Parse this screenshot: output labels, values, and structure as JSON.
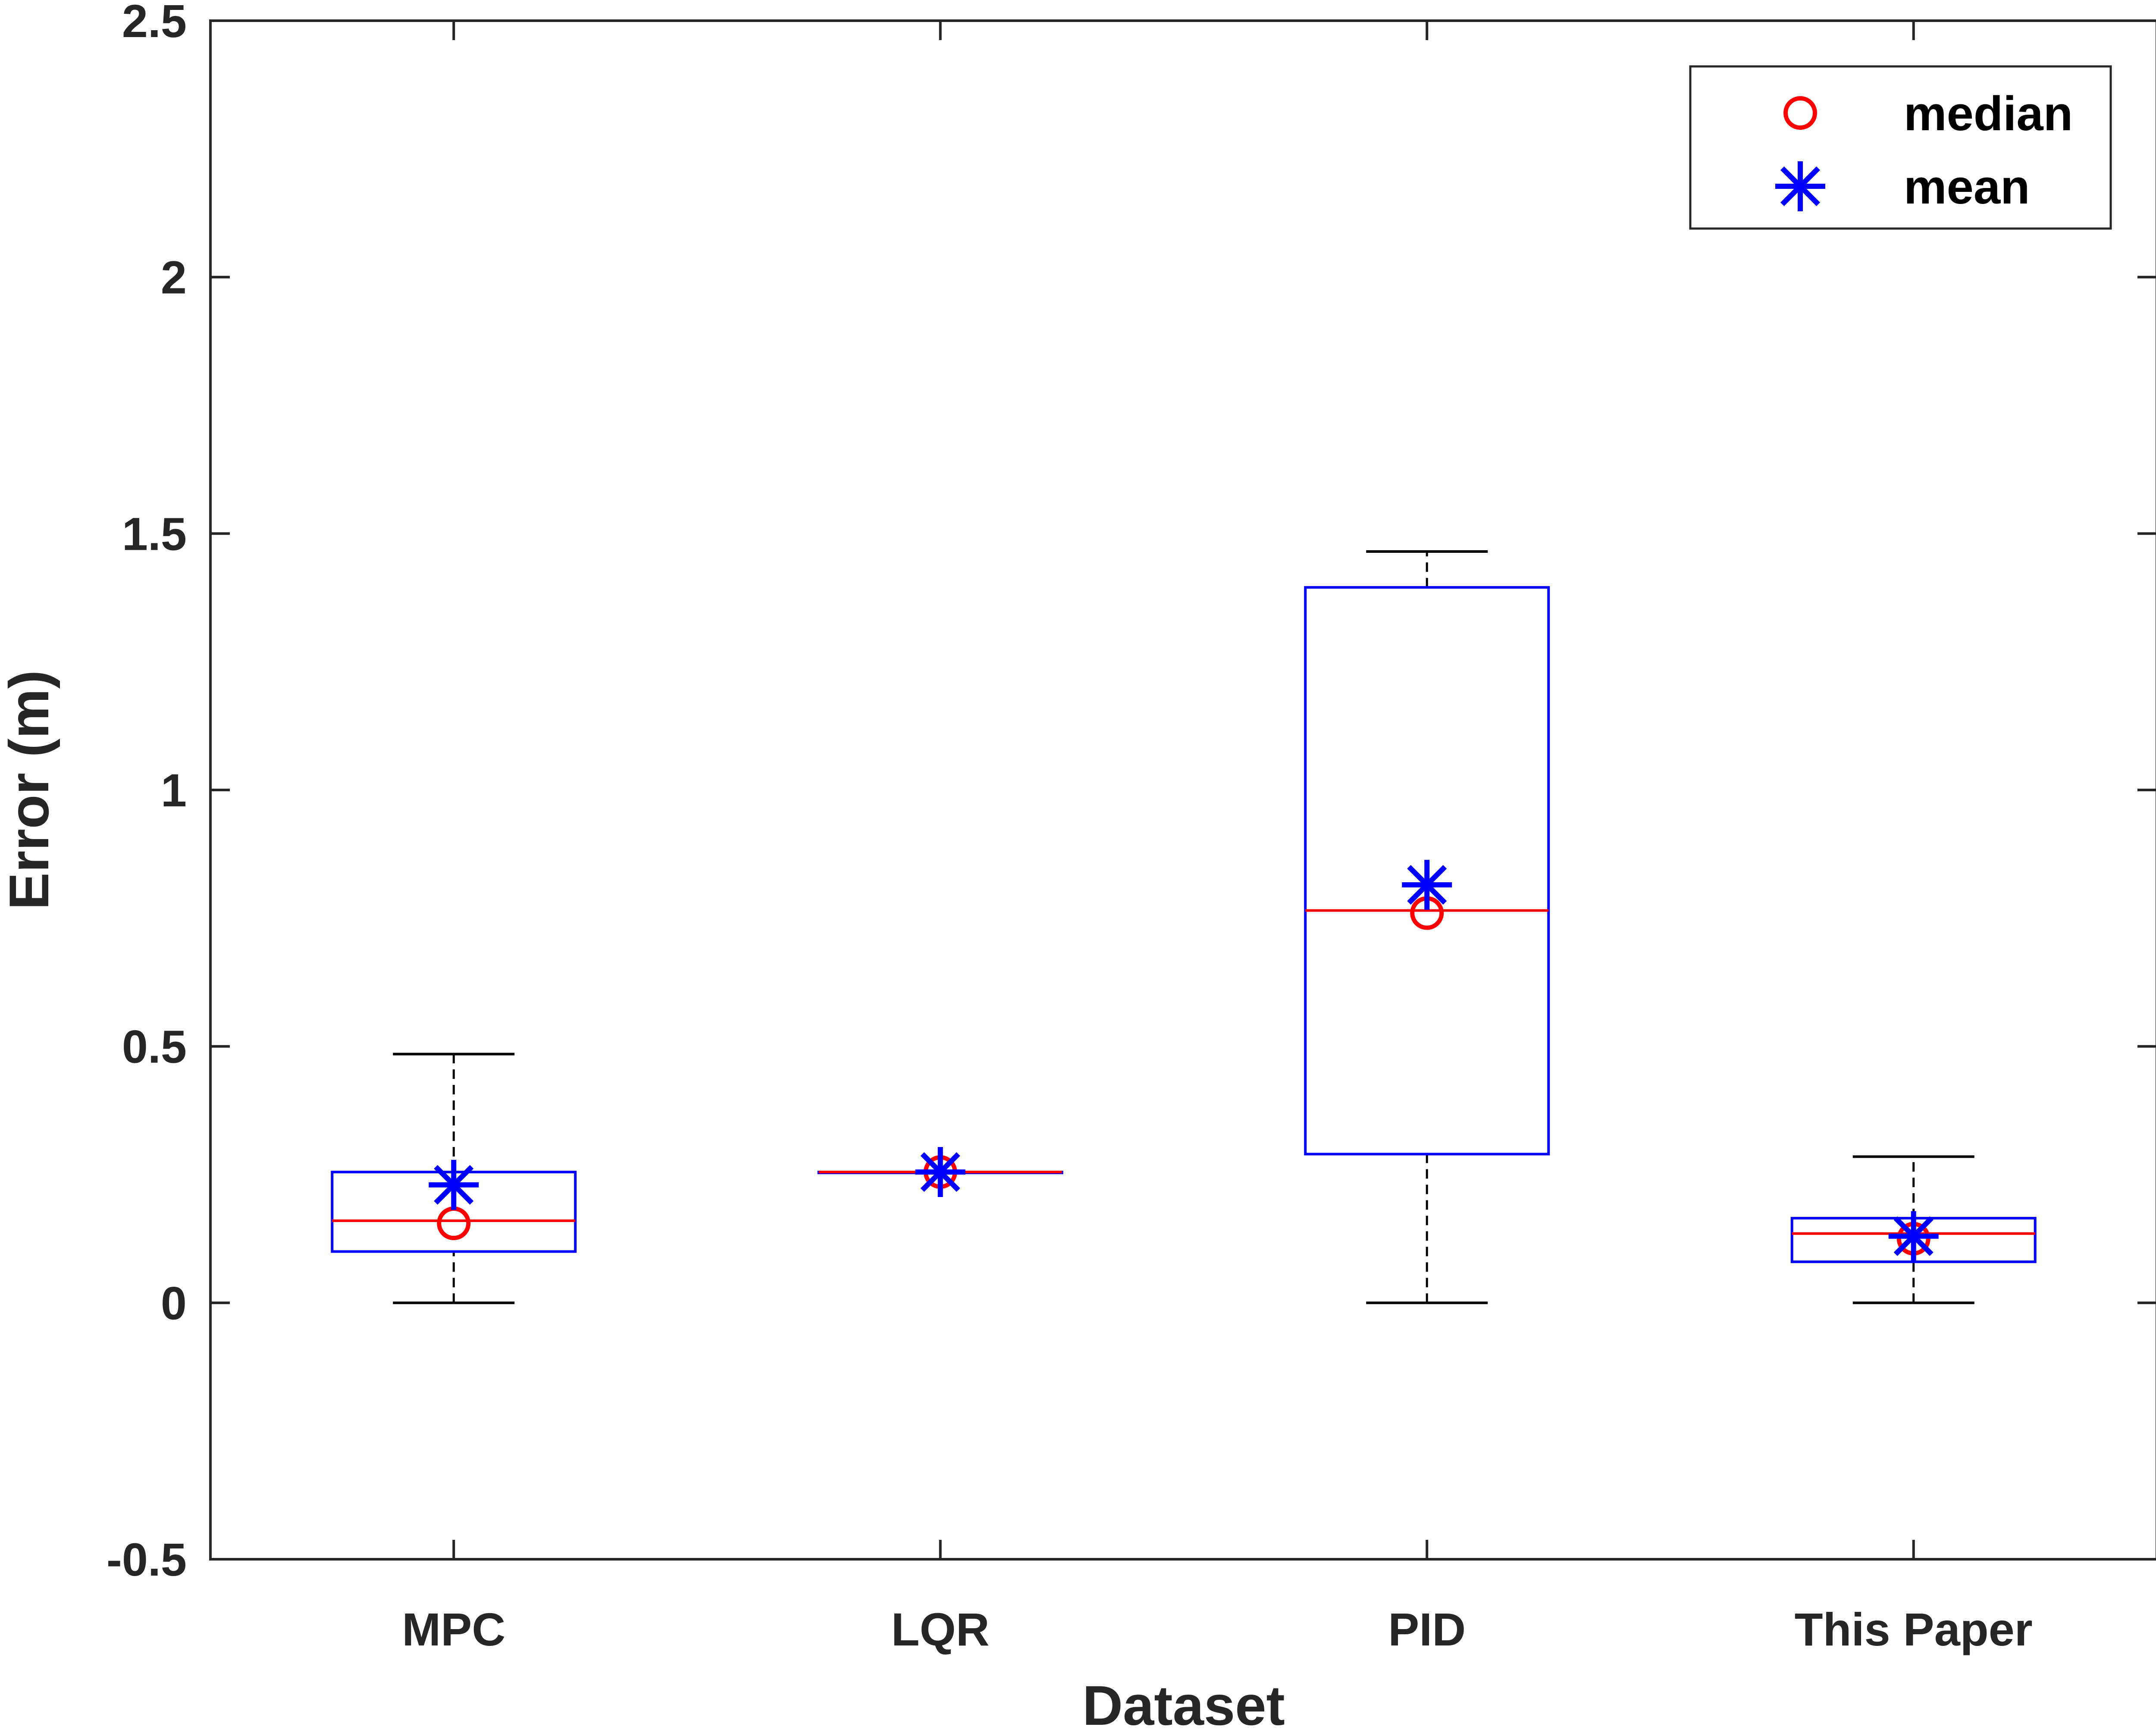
{
  "chart_data": {
    "type": "box",
    "title": "",
    "xlabel": "Dataset",
    "ylabel": "Error (m)",
    "ylim": [
      -0.5,
      2.5
    ],
    "yticks": [
      -0.5,
      0,
      0.5,
      1,
      1.5,
      2,
      2.5
    ],
    "ytick_labels": [
      "-0.5",
      "0",
      "0.5",
      "1",
      "1.5",
      "2",
      "2.5"
    ],
    "categories": [
      "MPC",
      "LQR",
      "PID",
      "This Paper"
    ],
    "boxes": [
      {
        "name": "MPC",
        "min": 0.0,
        "q1": 0.1,
        "median": 0.16,
        "q3": 0.255,
        "max": 0.485,
        "mean_marker": 0.23,
        "median_marker": 0.155
      },
      {
        "name": "LQR",
        "min": 0.255,
        "q1": 0.255,
        "median": 0.255,
        "q3": 0.255,
        "max": 0.255,
        "mean_marker": 0.255,
        "median_marker": 0.255
      },
      {
        "name": "PID",
        "min": 0.0,
        "q1": 0.29,
        "median": 0.765,
        "q3": 1.395,
        "max": 1.465,
        "mean_marker": 0.815,
        "median_marker": 0.76
      },
      {
        "name": "This Paper",
        "min": 0.0,
        "q1": 0.08,
        "median": 0.135,
        "q3": 0.165,
        "max": 0.285,
        "mean_marker": 0.13,
        "median_marker": 0.125
      }
    ],
    "legend": {
      "position": "top-right",
      "entries": [
        {
          "label": "median",
          "marker": "circle",
          "color": "#ff0000"
        },
        {
          "label": "mean",
          "marker": "asterisk",
          "color": "#0000ff"
        }
      ]
    },
    "colors": {
      "box": "#0000ff",
      "median_line": "#ff0000",
      "whisker": "#000000",
      "axis": "#262626"
    }
  }
}
